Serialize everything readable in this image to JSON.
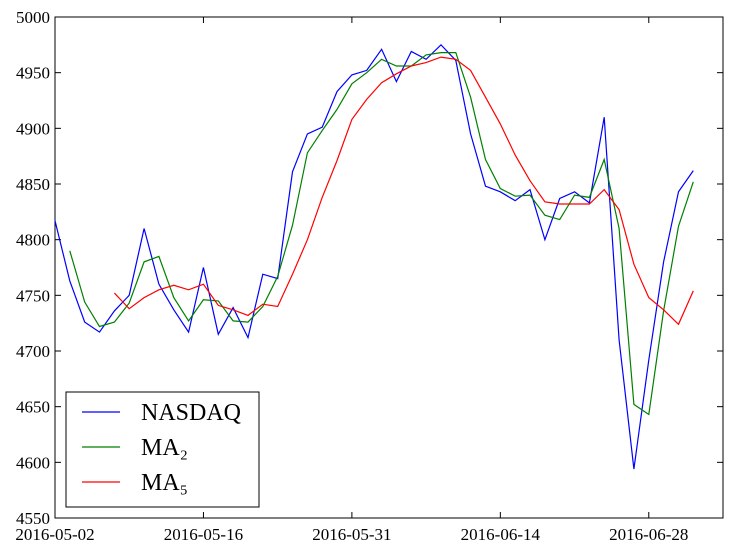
{
  "chart_data": {
    "type": "line",
    "categories": [
      "2016-05-02",
      null,
      null,
      null,
      null,
      null,
      null,
      null,
      null,
      null,
      "2016-05-16",
      null,
      null,
      null,
      null,
      null,
      null,
      null,
      null,
      null,
      "2016-05-31",
      null,
      null,
      null,
      null,
      null,
      null,
      null,
      null,
      null,
      "2016-06-14",
      null,
      null,
      null,
      null,
      null,
      null,
      null,
      null,
      null,
      "2016-06-28",
      null,
      null,
      null
    ],
    "series": [
      {
        "name": "NASDAQ",
        "color": "#0000ff",
        "values": [
          4817,
          4763,
          4726,
          4717,
          4736,
          4750,
          4810,
          4760,
          4737,
          4717,
          4775,
          4715,
          4739,
          4712,
          4769,
          4765,
          4861,
          4895,
          4901,
          4933,
          4948,
          4952,
          4971,
          4942,
          4969,
          4962,
          4975,
          4961,
          4895,
          4848,
          4843,
          4835,
          4845,
          4800,
          4837,
          4843,
          4833,
          4910,
          4710,
          4594,
          4692,
          4780,
          4843,
          4862
        ]
      },
      {
        "name": "MA₂",
        "color": "#008000",
        "values": [
          null,
          4790,
          4744,
          4722,
          4726,
          4743,
          4780,
          4785,
          4748,
          4727,
          4746,
          4745,
          4727,
          4726,
          4740,
          4767,
          4813,
          4878,
          4898,
          4917,
          4940,
          4950,
          4962,
          4956,
          4956,
          4966,
          4968,
          4968,
          4928,
          4872,
          4846,
          4839,
          4840,
          4822,
          4818,
          4840,
          4838,
          4872,
          4810,
          4652,
          4643,
          4736,
          4812,
          4852
        ]
      },
      {
        "name": "MA₅",
        "color": "#ff0000",
        "values": [
          null,
          null,
          null,
          null,
          4752,
          4738,
          4748,
          4755,
          4759,
          4755,
          4760,
          4741,
          4737,
          4732,
          4742,
          4740,
          4769,
          4800,
          4838,
          4871,
          4908,
          4926,
          4941,
          4949,
          4956,
          4959,
          4964,
          4962,
          4952,
          4928,
          4904,
          4876,
          4853,
          4834,
          4832,
          4832,
          4832,
          4845,
          4827,
          4778,
          4748,
          4737,
          4724,
          4754
        ]
      }
    ],
    "ylim": [
      4550,
      5000
    ],
    "yticks": [
      4550,
      4600,
      4650,
      4700,
      4750,
      4800,
      4850,
      4900,
      4950,
      5000
    ],
    "grid": false,
    "legend": "lower left"
  }
}
